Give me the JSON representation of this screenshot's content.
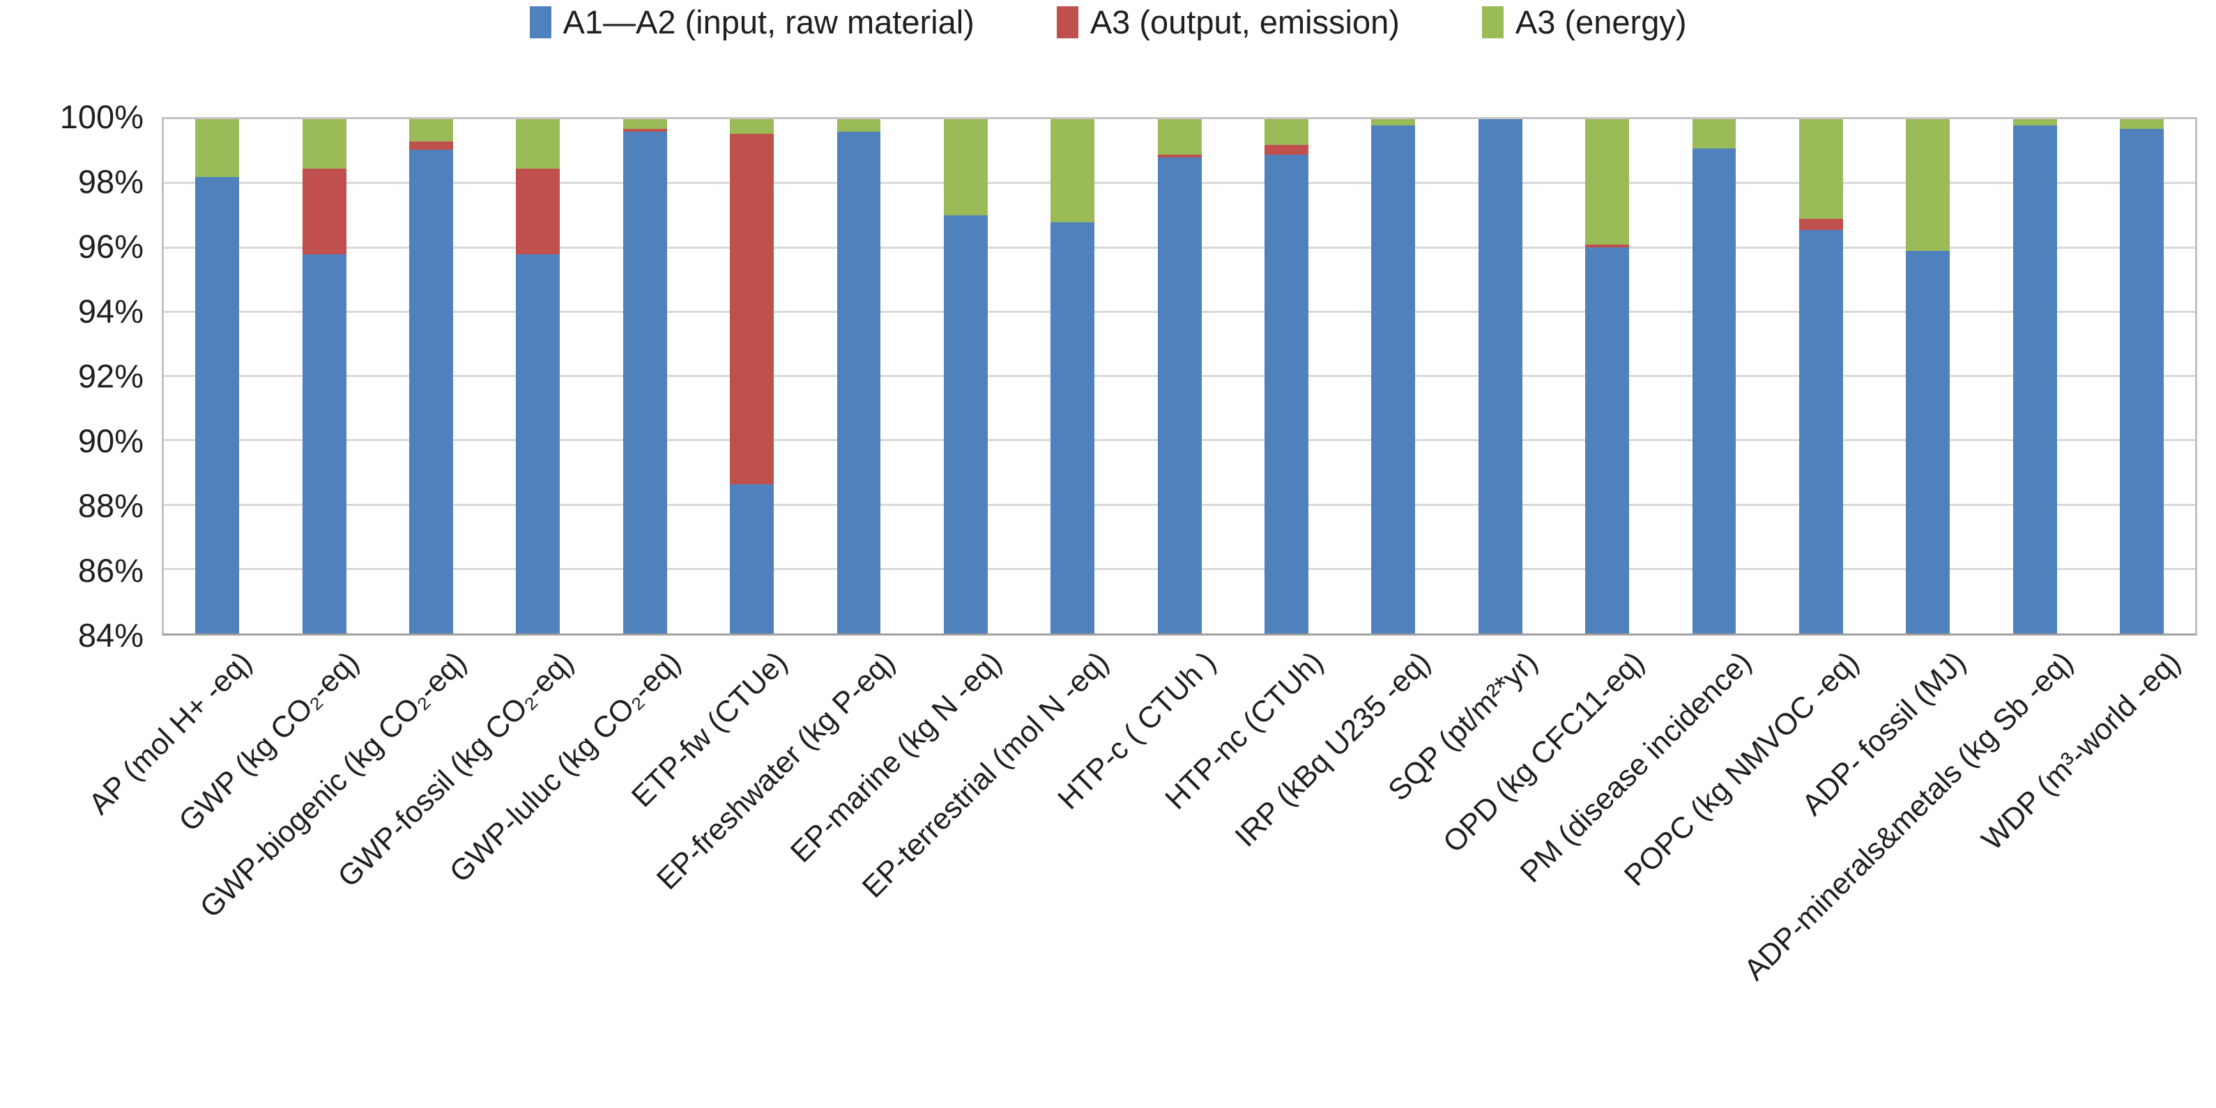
{
  "style": {
    "series_blue": "#4F81BD",
    "series_red": "#C0504D",
    "series_green": "#9BBB59",
    "grid_color": "#d9d9d9",
    "frame_color": "#c3c3c3",
    "axis_line_color": "#9f9f9f",
    "text_color": "#1f1f1f"
  },
  "chart_data": {
    "type": "bar",
    "stacked": true,
    "stack_unit": "percent",
    "title": "",
    "xlabel": "",
    "ylabel": "",
    "ylim": [
      84,
      100
    ],
    "ytick_step": 2,
    "ytick_labels": [
      "100%",
      "98%",
      "96%",
      "94%",
      "92%",
      "90%",
      "88%",
      "86%",
      "84%"
    ],
    "grid": true,
    "legend_position": "top",
    "categories": [
      "AP (mol H+ -eq)",
      "GWP (kg CO₂-eq)",
      "GWP-biogenic (kg CO₂-eq)",
      "GWP-fossil (kg CO₂-eq)",
      "GWP-luluc (kg CO₂-eq)",
      "ETP-fw (CTUe)",
      "EP-freshwater (kg P-eq)",
      "EP-marine (kg N -eq)",
      "EP-terrestrial (mol N -eq)",
      "HTP-c ( CTUh )",
      "HTP-nc (CTUh)",
      "IRP (kBq U235 -eq)",
      "SQP (pt/m²*yr)",
      "OPD (kg CFC11-eq)",
      "PM (disease incidence)",
      "POPC (kg NMVOC -eq)",
      "ADP- fossil (MJ)",
      "ADP-minerals&metals (kg Sb -eq)",
      "WDP (m³-world -eq)"
    ],
    "series": [
      {
        "name": "A1—A2 (input, raw material)",
        "color": "#4F81BD",
        "values": [
          98.2,
          95.8,
          99.05,
          95.8,
          99.6,
          88.65,
          99.6,
          97.0,
          96.8,
          98.8,
          98.9,
          99.8,
          100,
          96.0,
          99.1,
          96.55,
          95.9,
          99.8,
          99.7
        ]
      },
      {
        "name": "A3 (output, emission)",
        "color": "#C0504D",
        "values": [
          0,
          2.65,
          0.25,
          2.65,
          0.1,
          10.9,
          0,
          0,
          0,
          0.1,
          0.3,
          0,
          0,
          0.1,
          0,
          0.35,
          0,
          0,
          0
        ]
      },
      {
        "name": "A3 (energy)",
        "color": "#9BBB59",
        "values": [
          1.8,
          1.55,
          0.7,
          1.55,
          0.3,
          0.45,
          0.4,
          3.0,
          3.2,
          1.1,
          0.8,
          0.2,
          0,
          3.9,
          0.9,
          3.1,
          4.1,
          0.2,
          0.3
        ]
      }
    ]
  }
}
